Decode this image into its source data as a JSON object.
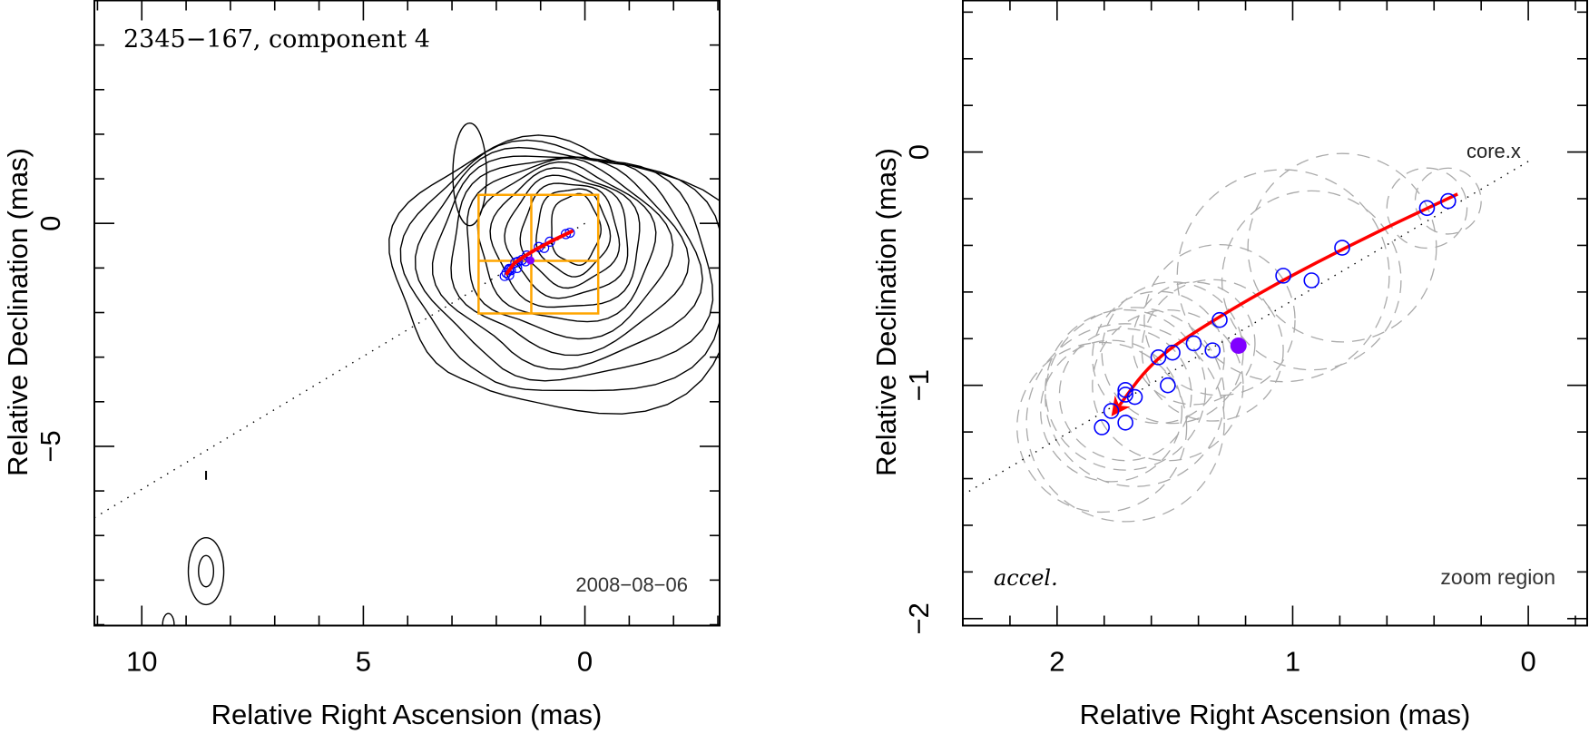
{
  "chart_data": [
    {
      "type": "scatter",
      "panel": "left",
      "title": "2345−167, component 4",
      "date_label": "2008−08−06",
      "xlabel": "Relative Right Ascension (mas)",
      "ylabel": "Relative Declination (mas)",
      "xlim": [
        11.07,
        -3.04
      ],
      "ylim": [
        -9.02,
        5.0
      ],
      "x_major_ticks": [
        10,
        5,
        0
      ],
      "x_tick_labels": [
        "10",
        "5",
        "0"
      ],
      "x_minor_step": 1,
      "y_major_ticks": [
        0,
        -5
      ],
      "y_tick_labels": [
        "0",
        "−5"
      ],
      "y_minor_step": 1,
      "grid": false,
      "jet_axis": {
        "from": [
          0.0,
          0.0
        ],
        "to": [
          11.07,
          -6.6
        ],
        "style": "dotted"
      },
      "zoom_box": {
        "ra": [
          2.4,
          -0.3
        ],
        "dec": [
          0.64,
          -2.02
        ],
        "divider_ra": 1.21,
        "divider_dec": -0.84,
        "color": "#ffa500"
      },
      "contour_levels": 12,
      "contour_color": "#000000",
      "component_positions_color": "#0000ff",
      "trajectory_color": "#ff0000",
      "reference_point_color": "#8000ff"
    },
    {
      "type": "scatter",
      "panel": "right",
      "xlabel": "Relative Right Ascension (mas)",
      "ylabel": "Relative Declination (mas)",
      "xlim": [
        2.4,
        -0.25
      ],
      "ylim": [
        -2.03,
        0.65
      ],
      "x_major_ticks": [
        2,
        1,
        0
      ],
      "x_tick_labels": [
        "2",
        "1",
        "0"
      ],
      "x_minor_step": 0.2,
      "y_major_ticks": [
        0,
        -1,
        -2
      ],
      "y_tick_labels": [
        "0",
        "−1",
        "−2"
      ],
      "y_minor_step": 0.2,
      "grid": false,
      "labels": {
        "core": "core.x",
        "model": "accel.",
        "region": "zoom region"
      },
      "series": [
        {
          "name": "component positions",
          "marker": "open-circle",
          "color": "#0000ff",
          "points": [
            [
              1.81,
              -1.18
            ],
            [
              1.77,
              -1.11
            ],
            [
              1.71,
              -1.16
            ],
            [
              1.71,
              -1.04
            ],
            [
              1.71,
              -1.02
            ],
            [
              1.67,
              -1.05
            ],
            [
              1.53,
              -1.0
            ],
            [
              1.57,
              -0.88
            ],
            [
              1.51,
              -0.86
            ],
            [
              1.42,
              -0.82
            ],
            [
              1.34,
              -0.85
            ],
            [
              1.31,
              -0.72
            ],
            [
              1.04,
              -0.53
            ],
            [
              0.92,
              -0.55
            ],
            [
              0.79,
              -0.41
            ],
            [
              0.43,
              -0.24
            ],
            [
              0.34,
              -0.21
            ]
          ]
        },
        {
          "name": "reference position",
          "marker": "filled-circle",
          "color": "#8000ff",
          "points": [
            [
              1.23,
              -0.83
            ]
          ]
        },
        {
          "name": "accelerated trajectory",
          "marker": "line-arrow",
          "color": "#ff0000",
          "points": [
            [
              0.3,
              -0.18
            ],
            [
              0.7,
              -0.37
            ],
            [
              1.1,
              -0.58
            ],
            [
              1.4,
              -0.76
            ],
            [
              1.6,
              -0.9
            ],
            [
              1.76,
              -1.12
            ]
          ]
        },
        {
          "name": "component sizes (FWHM)",
          "marker": "dashed-circle",
          "color": "#aaaaaa",
          "circles": [
            [
              1.81,
              -1.18,
              0.36
            ],
            [
              1.77,
              -1.11,
              0.3
            ],
            [
              1.71,
              -1.16,
              0.42
            ],
            [
              1.71,
              -1.04,
              0.28
            ],
            [
              1.71,
              -1.02,
              0.34
            ],
            [
              1.67,
              -1.05,
              0.38
            ],
            [
              1.53,
              -1.0,
              0.32
            ],
            [
              1.57,
              -0.88,
              0.28
            ],
            [
              1.51,
              -0.86,
              0.3
            ],
            [
              1.42,
              -0.82,
              0.26
            ],
            [
              1.34,
              -0.85,
              0.3
            ],
            [
              1.31,
              -0.72,
              0.32
            ],
            [
              1.04,
              -0.53,
              0.45
            ],
            [
              0.92,
              -0.55,
              0.38
            ],
            [
              0.79,
              -0.41,
              0.4
            ],
            [
              0.43,
              -0.24,
              0.17
            ],
            [
              0.34,
              -0.21,
              0.14
            ]
          ]
        }
      ],
      "jet_axis": {
        "from": [
          0.0,
          -0.04
        ],
        "to": [
          2.4,
          -1.47
        ],
        "style": "dotted"
      }
    }
  ]
}
